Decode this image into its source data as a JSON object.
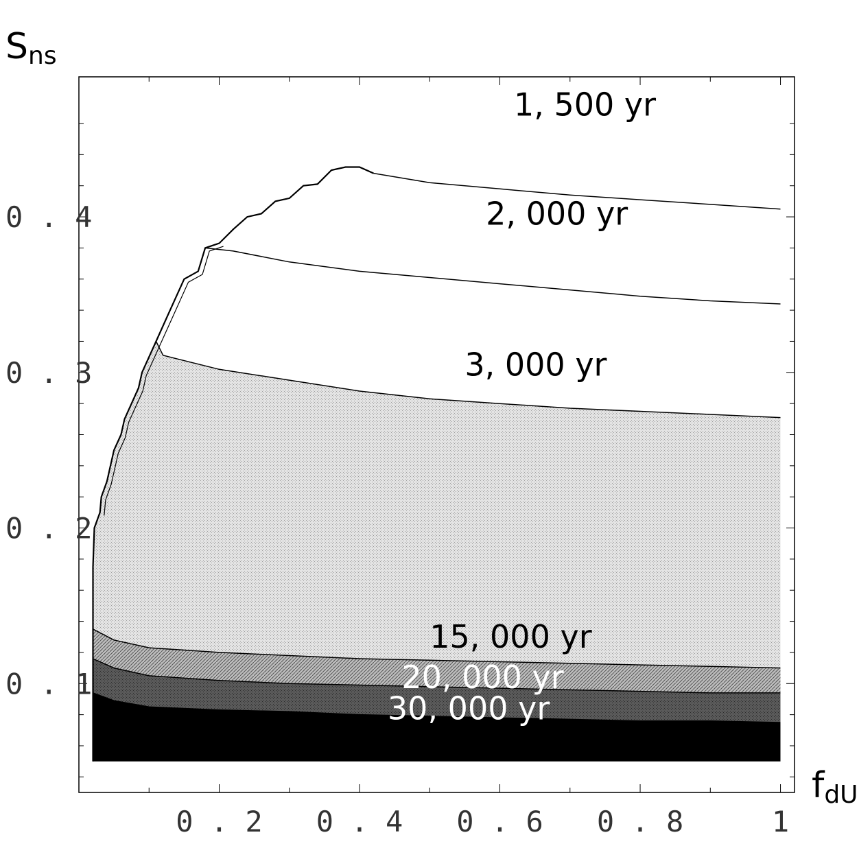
{
  "chart_data": {
    "type": "contour",
    "title": "",
    "xlabel": {
      "main": "f",
      "sub": "dU"
    },
    "ylabel": {
      "main": "S",
      "sub": "ns"
    },
    "xlim": [
      0.0,
      1.02
    ],
    "ylim": [
      0.03,
      0.49
    ],
    "x_ticks": [
      {
        "value": 0.2,
        "label": "0.2"
      },
      {
        "value": 0.4,
        "label": "0.4"
      },
      {
        "value": 0.6,
        "label": "0.6"
      },
      {
        "value": 0.8,
        "label": "0.8"
      },
      {
        "value": 1.0,
        "label": "1"
      }
    ],
    "y_ticks": [
      {
        "value": 0.1,
        "label": "0.1"
      },
      {
        "value": 0.2,
        "label": "0.2"
      },
      {
        "value": 0.3,
        "label": "0.3"
      },
      {
        "value": 0.4,
        "label": "0.4"
      }
    ],
    "domain_boundary": [
      [
        0.02,
        0.05
      ],
      [
        0.02,
        0.175
      ],
      [
        0.022,
        0.2
      ],
      [
        0.03,
        0.21
      ],
      [
        0.032,
        0.22
      ],
      [
        0.04,
        0.23
      ],
      [
        0.045,
        0.24
      ],
      [
        0.05,
        0.25
      ],
      [
        0.06,
        0.26
      ],
      [
        0.065,
        0.27
      ],
      [
        0.075,
        0.28
      ],
      [
        0.085,
        0.29
      ],
      [
        0.09,
        0.3
      ],
      [
        0.1,
        0.31
      ],
      [
        0.11,
        0.32
      ],
      [
        0.13,
        0.34
      ],
      [
        0.15,
        0.36
      ],
      [
        0.17,
        0.365
      ],
      [
        0.18,
        0.38
      ],
      [
        0.2,
        0.383
      ],
      [
        0.22,
        0.392
      ],
      [
        0.24,
        0.4
      ],
      [
        0.26,
        0.402
      ],
      [
        0.28,
        0.41
      ],
      [
        0.3,
        0.412
      ],
      [
        0.32,
        0.42
      ],
      [
        0.34,
        0.421
      ],
      [
        0.36,
        0.43
      ],
      [
        0.38,
        0.432
      ],
      [
        0.4,
        0.432
      ],
      [
        0.42,
        0.428
      ]
    ],
    "contours": [
      {
        "label": "1, 500 yr",
        "label_position": [
          0.62,
          0.465
        ],
        "points": [
          [
            0.42,
            0.428
          ],
          [
            0.5,
            0.422
          ],
          [
            0.6,
            0.418
          ],
          [
            0.7,
            0.414
          ],
          [
            0.8,
            0.411
          ],
          [
            0.9,
            0.408
          ],
          [
            1.0,
            0.405
          ]
        ]
      },
      {
        "label": "2, 000 yr",
        "label_position": [
          0.58,
          0.395
        ],
        "points": [
          [
            0.18,
            0.38
          ],
          [
            0.22,
            0.378
          ],
          [
            0.3,
            0.371
          ],
          [
            0.4,
            0.365
          ],
          [
            0.5,
            0.361
          ],
          [
            0.6,
            0.357
          ],
          [
            0.7,
            0.353
          ],
          [
            0.8,
            0.349
          ],
          [
            0.9,
            0.346
          ],
          [
            1.0,
            0.344
          ]
        ]
      },
      {
        "label": "3, 000 yr",
        "label_position": [
          0.55,
          0.298
        ],
        "points": [
          [
            0.11,
            0.32
          ],
          [
            0.12,
            0.311
          ],
          [
            0.2,
            0.302
          ],
          [
            0.3,
            0.295
          ],
          [
            0.4,
            0.288
          ],
          [
            0.5,
            0.283
          ],
          [
            0.6,
            0.28
          ],
          [
            0.7,
            0.277
          ],
          [
            0.8,
            0.275
          ],
          [
            0.9,
            0.273
          ],
          [
            1.0,
            0.271
          ]
        ]
      },
      {
        "label": "15, 000 yr",
        "label_position": [
          0.5,
          0.123
        ],
        "points": [
          [
            0.02,
            0.135
          ],
          [
            0.05,
            0.128
          ],
          [
            0.1,
            0.123
          ],
          [
            0.2,
            0.12
          ],
          [
            0.3,
            0.118
          ],
          [
            0.4,
            0.116
          ],
          [
            0.5,
            0.115
          ],
          [
            0.6,
            0.114
          ],
          [
            0.7,
            0.113
          ],
          [
            0.8,
            0.112
          ],
          [
            0.9,
            0.111
          ],
          [
            1.0,
            0.11
          ]
        ]
      },
      {
        "label": "20, 000 yr",
        "label_position": [
          0.46,
          0.097
        ],
        "points": [
          [
            0.02,
            0.116
          ],
          [
            0.05,
            0.11
          ],
          [
            0.1,
            0.105
          ],
          [
            0.2,
            0.102
          ],
          [
            0.3,
            0.1
          ],
          [
            0.4,
            0.099
          ],
          [
            0.5,
            0.098
          ],
          [
            0.6,
            0.097
          ],
          [
            0.7,
            0.096
          ],
          [
            0.8,
            0.095
          ],
          [
            0.9,
            0.094
          ],
          [
            1.0,
            0.094
          ]
        ]
      },
      {
        "label": "30, 000 yr",
        "label_position": [
          0.44,
          0.077
        ],
        "points": [
          [
            0.02,
            0.094
          ],
          [
            0.05,
            0.089
          ],
          [
            0.1,
            0.085
          ],
          [
            0.2,
            0.083
          ],
          [
            0.3,
            0.082
          ],
          [
            0.4,
            0.08
          ],
          [
            0.5,
            0.079
          ],
          [
            0.6,
            0.078
          ],
          [
            0.7,
            0.077
          ],
          [
            0.8,
            0.076
          ],
          [
            0.9,
            0.076
          ],
          [
            1.0,
            0.075
          ]
        ]
      }
    ],
    "floor": 0.05,
    "band_fills": [
      "#ffffff",
      "#ffffff",
      "#ffffff",
      "#d6d6d6",
      "#a9a9a9",
      "#6a6a6a",
      "#000000"
    ],
    "label_colors": [
      "#000000",
      "#000000",
      "#000000",
      "#000000",
      "#ffffff",
      "#ffffff"
    ]
  }
}
